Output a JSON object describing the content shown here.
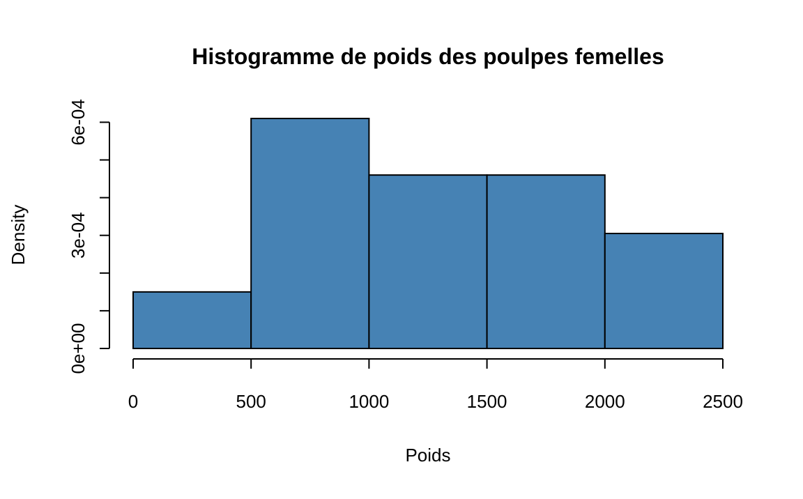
{
  "colors": {
    "bar_fill": "#4682B4",
    "stroke": "#000000",
    "background": "#ffffff"
  },
  "chart_data": {
    "type": "bar",
    "title": "Histogramme de poids des poulpes femelles",
    "xlabel": "Poids",
    "ylabel": "Density",
    "bins": [
      {
        "start": 0,
        "end": 500,
        "density": 0.00015
      },
      {
        "start": 500,
        "end": 1000,
        "density": 0.00061
      },
      {
        "start": 1000,
        "end": 1500,
        "density": 0.00046
      },
      {
        "start": 1500,
        "end": 2000,
        "density": 0.00046
      },
      {
        "start": 2000,
        "end": 2500,
        "density": 0.000305
      }
    ],
    "xlim": [
      0,
      2500
    ],
    "ylim": [
      0,
      0.00061
    ],
    "x_ticks": [
      0,
      500,
      1000,
      1500,
      2000,
      2500
    ],
    "x_tick_labels": [
      "0",
      "500",
      "1000",
      "1500",
      "2000",
      "2500"
    ],
    "y_ticks": [
      0,
      0.0001,
      0.0002,
      0.0003,
      0.0004,
      0.0005,
      0.0006
    ],
    "y_tick_labels": [
      {
        "value": 0,
        "label": "0e+00"
      },
      {
        "value": 0.0003,
        "label": "3e-04"
      },
      {
        "value": 0.0006,
        "label": "6e-04"
      }
    ],
    "grid": false,
    "legend": "none"
  }
}
